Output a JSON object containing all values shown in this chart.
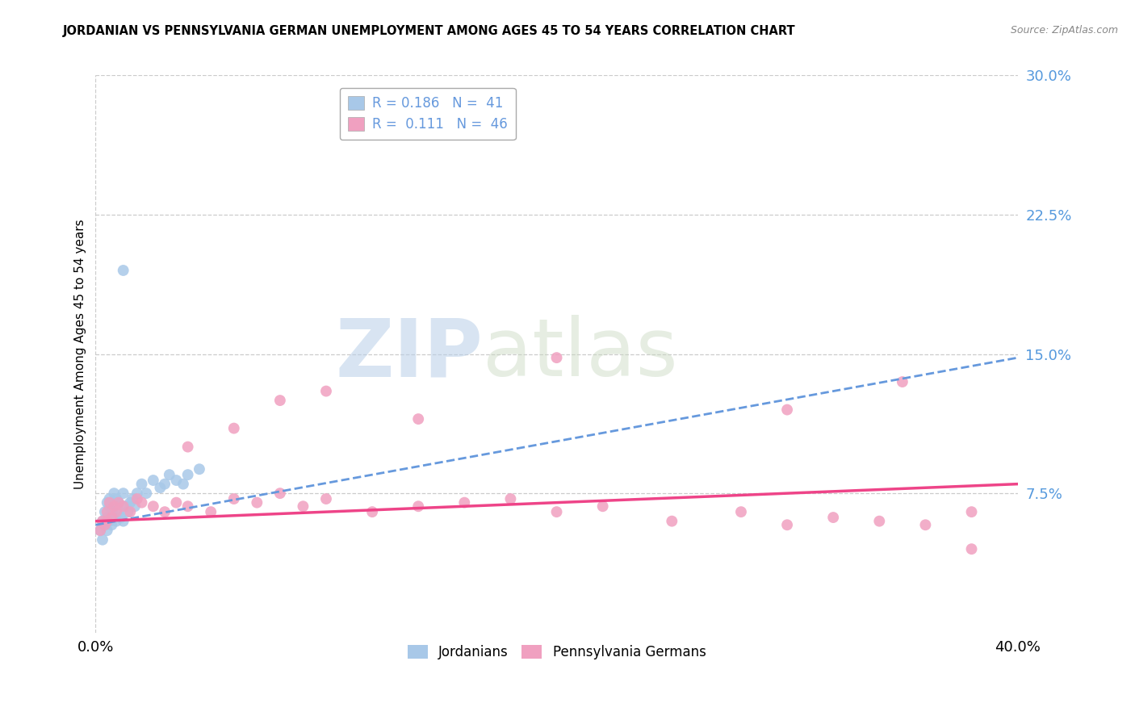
{
  "title": "JORDANIAN VS PENNSYLVANIA GERMAN UNEMPLOYMENT AMONG AGES 45 TO 54 YEARS CORRELATION CHART",
  "source": "Source: ZipAtlas.com",
  "ylabel": "Unemployment Among Ages 45 to 54 years",
  "xlim": [
    0.0,
    0.4
  ],
  "ylim": [
    0.0,
    0.3
  ],
  "xticks": [
    0.0,
    0.4
  ],
  "xticklabels": [
    "0.0%",
    "40.0%"
  ],
  "yticks": [
    0.075,
    0.15,
    0.225,
    0.3
  ],
  "yticklabels": [
    "7.5%",
    "15.0%",
    "22.5%",
    "30.0%"
  ],
  "grid_color": "#cccccc",
  "background_color": "#ffffff",
  "jordanians_color": "#a8c8e8",
  "penn_german_color": "#f0a0c0",
  "jordanians_trend_color": "#6699dd",
  "penn_german_trend_color": "#ee4488",
  "tick_color": "#5599dd",
  "jordanians_R": "0.186",
  "jordanians_N": "41",
  "penn_german_R": "0.111",
  "penn_german_N": "46",
  "watermark_zip": "ZIP",
  "watermark_atlas": "atlas",
  "jordanians_x": [
    0.002,
    0.003,
    0.003,
    0.004,
    0.004,
    0.005,
    0.005,
    0.005,
    0.006,
    0.006,
    0.006,
    0.007,
    0.007,
    0.007,
    0.008,
    0.008,
    0.008,
    0.009,
    0.009,
    0.01,
    0.01,
    0.011,
    0.012,
    0.012,
    0.013,
    0.014,
    0.015,
    0.016,
    0.017,
    0.018,
    0.02,
    0.022,
    0.025,
    0.028,
    0.03,
    0.032,
    0.035,
    0.038,
    0.04,
    0.045,
    0.012
  ],
  "jordanians_y": [
    0.055,
    0.06,
    0.05,
    0.065,
    0.058,
    0.07,
    0.062,
    0.055,
    0.068,
    0.072,
    0.06,
    0.065,
    0.07,
    0.058,
    0.075,
    0.062,
    0.068,
    0.06,
    0.072,
    0.065,
    0.07,
    0.062,
    0.075,
    0.06,
    0.068,
    0.065,
    0.07,
    0.072,
    0.068,
    0.075,
    0.08,
    0.075,
    0.082,
    0.078,
    0.08,
    0.085,
    0.082,
    0.08,
    0.085,
    0.088,
    0.195
  ],
  "penn_german_x": [
    0.002,
    0.003,
    0.004,
    0.005,
    0.005,
    0.006,
    0.007,
    0.008,
    0.009,
    0.01,
    0.012,
    0.015,
    0.018,
    0.02,
    0.025,
    0.03,
    0.035,
    0.04,
    0.05,
    0.06,
    0.07,
    0.08,
    0.09,
    0.1,
    0.12,
    0.14,
    0.16,
    0.18,
    0.2,
    0.22,
    0.25,
    0.28,
    0.3,
    0.32,
    0.34,
    0.36,
    0.38,
    0.14,
    0.06,
    0.04,
    0.08,
    0.1,
    0.2,
    0.3,
    0.35,
    0.38
  ],
  "penn_german_y": [
    0.055,
    0.06,
    0.058,
    0.065,
    0.06,
    0.07,
    0.062,
    0.068,
    0.065,
    0.07,
    0.068,
    0.065,
    0.072,
    0.07,
    0.068,
    0.065,
    0.07,
    0.068,
    0.065,
    0.072,
    0.07,
    0.075,
    0.068,
    0.072,
    0.065,
    0.068,
    0.07,
    0.072,
    0.065,
    0.068,
    0.06,
    0.065,
    0.058,
    0.062,
    0.06,
    0.058,
    0.065,
    0.115,
    0.11,
    0.1,
    0.125,
    0.13,
    0.148,
    0.12,
    0.135,
    0.045
  ],
  "jord_trend_x": [
    0.0,
    0.4
  ],
  "jord_trend_y": [
    0.058,
    0.148
  ],
  "penn_trend_x": [
    0.0,
    0.4
  ],
  "penn_trend_y": [
    0.06,
    0.08
  ]
}
